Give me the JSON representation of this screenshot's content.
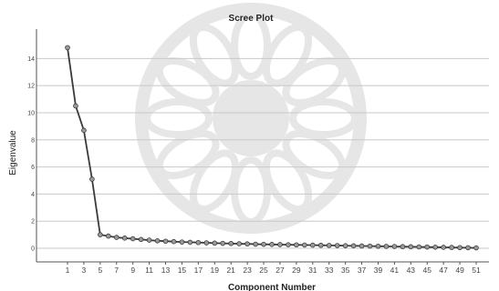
{
  "chart_data": {
    "type": "line",
    "title": "Scree Plot",
    "xlabel": "Component Number",
    "ylabel": "Eigenvalue",
    "xlim": [
      1,
      51
    ],
    "ylim": [
      0,
      16
    ],
    "grid": true,
    "y_ticks": [
      "0",
      "2",
      "4",
      "6",
      "8",
      "10",
      "12",
      "14"
    ],
    "x_ticks": [
      "1",
      "3",
      "5",
      "7",
      "9",
      "11",
      "13",
      "15",
      "17",
      "19",
      "21",
      "23",
      "25",
      "27",
      "29",
      "31",
      "33",
      "35",
      "37",
      "39",
      "41",
      "43",
      "45",
      "47",
      "49",
      "51"
    ],
    "x": [
      1,
      2,
      3,
      4,
      5,
      6,
      7,
      8,
      9,
      10,
      11,
      12,
      13,
      14,
      15,
      16,
      17,
      18,
      19,
      20,
      21,
      22,
      23,
      24,
      25,
      26,
      27,
      28,
      29,
      30,
      31,
      32,
      33,
      34,
      35,
      36,
      37,
      38,
      39,
      40,
      41,
      42,
      43,
      44,
      45,
      46,
      47,
      48,
      49,
      50,
      51
    ],
    "y": [
      14.8,
      10.5,
      8.7,
      5.1,
      1.0,
      0.9,
      0.8,
      0.75,
      0.7,
      0.65,
      0.6,
      0.55,
      0.52,
      0.49,
      0.46,
      0.44,
      0.42,
      0.4,
      0.38,
      0.36,
      0.35,
      0.33,
      0.32,
      0.3,
      0.29,
      0.28,
      0.27,
      0.26,
      0.25,
      0.24,
      0.23,
      0.22,
      0.21,
      0.2,
      0.19,
      0.18,
      0.17,
      0.16,
      0.15,
      0.14,
      0.13,
      0.12,
      0.11,
      0.1,
      0.09,
      0.08,
      0.07,
      0.06,
      0.05,
      0.04,
      0.03
    ],
    "colors": {
      "line": "#3a3a3a",
      "marker_fill": "#9a9a9a",
      "grid": "#c8c8c8",
      "watermark": "#e6e6e6"
    }
  }
}
